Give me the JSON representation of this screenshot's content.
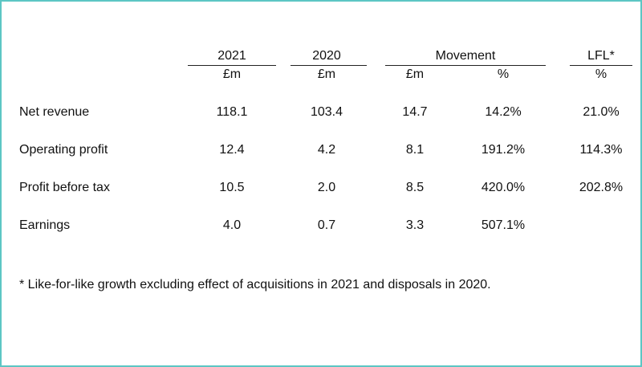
{
  "table": {
    "header_years": {
      "y2021": "2021",
      "y2020": "2020",
      "movement": "Movement",
      "lfl": "LFL*"
    },
    "header_units": {
      "u2021": "£m",
      "u2020": "£m",
      "mov_abs": "£m",
      "mov_pct": "%",
      "lfl_pct": "%"
    },
    "rows": [
      {
        "label": "Net revenue",
        "y2021": "118.1",
        "y2020": "103.4",
        "mov_abs": "14.7",
        "mov_pct": "14.2%",
        "lfl": "21.0%"
      },
      {
        "label": "Operating profit",
        "y2021": "12.4",
        "y2020": "4.2",
        "mov_abs": "8.1",
        "mov_pct": "191.2%",
        "lfl": "114.3%"
      },
      {
        "label": "Profit before tax",
        "y2021": "10.5",
        "y2020": "2.0",
        "mov_abs": "8.5",
        "mov_pct": "420.0%",
        "lfl": "202.8%"
      },
      {
        "label": "Earnings",
        "y2021": "4.0",
        "y2020": "0.7",
        "mov_abs": "3.3",
        "mov_pct": "507.1%",
        "lfl": ""
      }
    ]
  },
  "footnote": "* Like-for-like growth excluding effect of acquisitions in 2021 and disposals in 2020.",
  "colors": {
    "frame_border": "#5cc6c4",
    "text": "#111111"
  }
}
